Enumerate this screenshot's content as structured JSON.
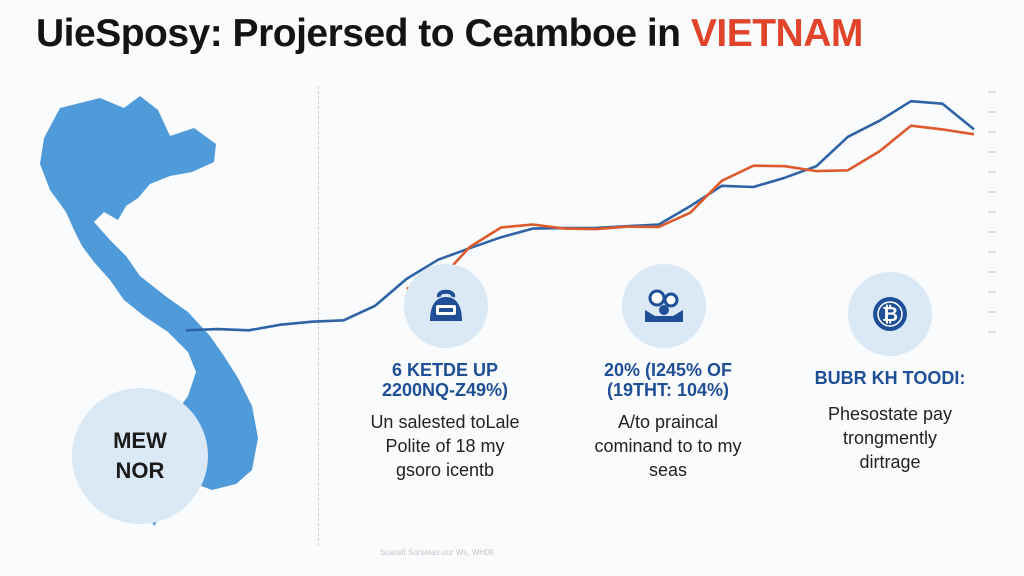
{
  "title": {
    "main": "UieSposy: Projersed to Ceamboe in",
    "accent": "VIETNAM"
  },
  "map": {
    "circle_line1": "MEW",
    "circle_line2": "NOR"
  },
  "colors": {
    "blue_series": "#2f63a6",
    "orange_series": "#dd5a2c",
    "map_fill": "#4f9ad9",
    "circle_fill": "#dbe8f5",
    "accent": "#e0452c"
  },
  "icons": [
    "money-bag-icon",
    "crypto-hands-icon",
    "bitcoin-coin-icon"
  ],
  "cards": [
    {
      "h1": "6 KETDE UP",
      "h2": "2200NQ-Z49%)",
      "body": [
        "Un salested toLale",
        "Polite of 18 my",
        "gsoro icentb"
      ]
    },
    {
      "h1": "20% (I245% OF",
      "h2": "(19THT: 104%)",
      "body": [
        "A/to praincal",
        "cominand to to my",
        "seas"
      ]
    },
    {
      "h1": "BUBR KH TOODI:",
      "h2": "",
      "body": [
        "Phesostate pay",
        "trongmently",
        "dirtrage"
      ]
    }
  ],
  "chart_data": {
    "type": "line",
    "x": [
      0,
      1,
      2,
      3,
      4,
      5,
      6,
      7,
      8,
      9,
      10,
      11,
      12,
      13,
      14,
      15,
      16,
      17,
      18,
      19,
      20,
      21,
      22,
      23,
      24,
      25
    ],
    "series": [
      {
        "name": "",
        "color": "#2f63a6",
        "values": [
          6,
          6.5,
          6,
          8.3,
          9.5,
          10.1,
          16,
          27,
          34.8,
          39.5,
          44,
          47.5,
          47.7,
          47.8,
          48.5,
          49.2,
          56.7,
          65,
          64.5,
          68.3,
          73,
          85,
          91.5,
          99.5,
          98.5,
          88
        ]
      },
      {
        "name": "",
        "color": "#dd5a2c",
        "values": [
          null,
          null,
          null,
          null,
          null,
          null,
          null,
          23,
          26,
          40,
          48,
          49.2,
          47.5,
          47.3,
          48.3,
          48.2,
          54,
          67,
          73.2,
          73,
          71,
          71.3,
          79,
          89.5,
          88,
          86
        ]
      }
    ],
    "ylim": [
      0,
      100
    ],
    "grid": false,
    "legend": "none"
  },
  "footnote": "Soaratt Sorsetas uur Ws, WH0K"
}
